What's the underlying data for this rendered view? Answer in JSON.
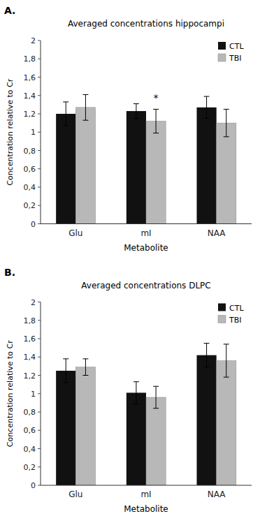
{
  "chart_data": [
    {
      "type": "bar",
      "panel_label": "A.",
      "title": "Averaged concentrations hippocampi",
      "xlabel": "Metabolite",
      "ylabel": "Concentration relative to Cr",
      "categories": [
        "Glu",
        "mI",
        "NAA"
      ],
      "series": [
        {
          "name": "CTL",
          "color": "#111111",
          "values": [
            1.2,
            1.23,
            1.27
          ],
          "errors": [
            0.13,
            0.08,
            0.12
          ]
        },
        {
          "name": "TBI",
          "color": "#b8b8b8",
          "values": [
            1.27,
            1.12,
            1.1
          ],
          "errors": [
            0.14,
            0.13,
            0.15
          ]
        }
      ],
      "annotations": [
        {
          "text": "*",
          "category": "mI",
          "series": "TBI"
        }
      ],
      "ylim": [
        0,
        2.0
      ],
      "yticks": [
        0,
        {
          "value": 0.2,
          "label": "0,2"
        },
        {
          "value": 0.4,
          "label": "0,4"
        },
        {
          "value": 0.6,
          "label": "0,6"
        },
        {
          "value": 0.8,
          "label": "0,8"
        },
        1,
        {
          "value": 1.2,
          "label": "1,2"
        },
        {
          "value": 1.4,
          "label": "1,4"
        },
        {
          "value": 1.6,
          "label": "1,6"
        },
        {
          "value": 1.8,
          "label": "1,8"
        },
        2
      ],
      "grid": false,
      "legend": "upper right"
    },
    {
      "type": "bar",
      "panel_label": "B.",
      "title": "Averaged concentrations DLPC",
      "xlabel": "Metabolite",
      "ylabel": "Concentration relative to Cr",
      "categories": [
        "Glu",
        "mI",
        "NAA"
      ],
      "series": [
        {
          "name": "CTL",
          "color": "#111111",
          "values": [
            1.25,
            1.01,
            1.42
          ],
          "errors": [
            0.13,
            0.12,
            0.13
          ]
        },
        {
          "name": "TBI",
          "color": "#b8b8b8",
          "values": [
            1.29,
            0.96,
            1.36
          ],
          "errors": [
            0.09,
            0.12,
            0.18
          ]
        }
      ],
      "ylim": [
        0,
        2.0
      ],
      "yticks": [
        0,
        {
          "value": 0.2,
          "label": "0,2"
        },
        {
          "value": 0.4,
          "label": "0,4"
        },
        {
          "value": 0.6,
          "label": "0,6"
        },
        {
          "value": 0.8,
          "label": "0,8"
        },
        1,
        {
          "value": 1.2,
          "label": "1,2"
        },
        {
          "value": 1.4,
          "label": "1,4"
        },
        {
          "value": 1.6,
          "label": "1,6"
        },
        {
          "value": 1.8,
          "label": "1,8"
        },
        2
      ],
      "grid": false,
      "legend": "upper right"
    }
  ]
}
